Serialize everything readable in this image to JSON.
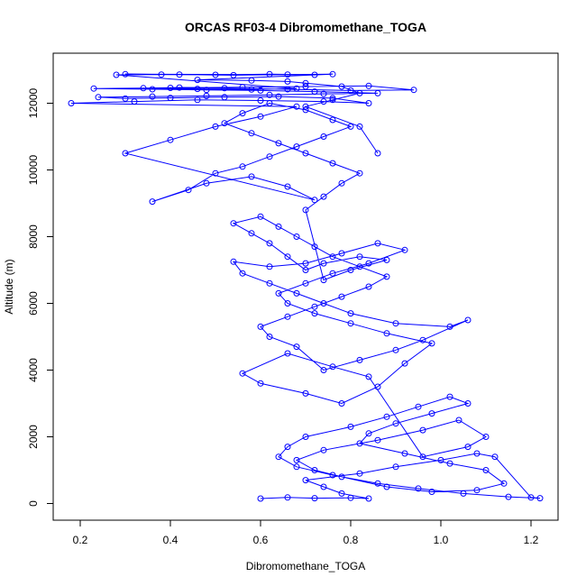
{
  "chart_data": {
    "type": "line",
    "title": "ORCAS RF03-4 Dibromomethane_TOGA",
    "xlabel": "Dibromomethane_TOGA",
    "ylabel": "Altitude (m)",
    "xlim": [
      0.14,
      1.26
    ],
    "ylim": [
      -500,
      13500
    ],
    "x_ticks": [
      0.2,
      0.4,
      0.6,
      0.8,
      1.0,
      1.2
    ],
    "x_tick_labels": [
      "0.2",
      "0.4",
      "0.6",
      "0.8",
      "1.0",
      "1.2"
    ],
    "y_ticks": [
      0,
      2000,
      4000,
      6000,
      8000,
      10000,
      12000
    ],
    "y_tick_labels": [
      "0",
      "2000",
      "4000",
      "6000",
      "8000",
      "10000",
      "12000"
    ],
    "grid": false,
    "series": [
      {
        "name": "Dibromomethane_TOGA",
        "color": "#0000ff",
        "marker": "open-circle",
        "points": [
          [
            0.6,
            150
          ],
          [
            0.66,
            180
          ],
          [
            0.72,
            160
          ],
          [
            0.8,
            170
          ],
          [
            0.84,
            150
          ],
          [
            0.78,
            300
          ],
          [
            0.74,
            500
          ],
          [
            0.7,
            700
          ],
          [
            0.82,
            900
          ],
          [
            0.9,
            1100
          ],
          [
            1.0,
            1300
          ],
          [
            1.08,
            1500
          ],
          [
            1.12,
            1400
          ],
          [
            1.2,
            180
          ],
          [
            1.22,
            160
          ],
          [
            1.15,
            200
          ],
          [
            1.05,
            300
          ],
          [
            0.95,
            450
          ],
          [
            0.86,
            600
          ],
          [
            0.76,
            850
          ],
          [
            0.68,
            1100
          ],
          [
            0.64,
            1400
          ],
          [
            0.66,
            1700
          ],
          [
            0.7,
            2000
          ],
          [
            0.8,
            2300
          ],
          [
            0.88,
            2600
          ],
          [
            0.95,
            2900
          ],
          [
            1.02,
            3200
          ],
          [
            1.06,
            3000
          ],
          [
            0.98,
            2700
          ],
          [
            0.9,
            2400
          ],
          [
            0.84,
            2100
          ],
          [
            0.82,
            1800
          ],
          [
            0.92,
            1500
          ],
          [
            1.02,
            1200
          ],
          [
            1.1,
            1000
          ],
          [
            1.14,
            600
          ],
          [
            1.08,
            400
          ],
          [
            0.98,
            350
          ],
          [
            0.88,
            500
          ],
          [
            0.78,
            800
          ],
          [
            0.72,
            1000
          ],
          [
            0.68,
            1300
          ],
          [
            0.74,
            1600
          ],
          [
            0.86,
            1900
          ],
          [
            0.96,
            2200
          ],
          [
            1.04,
            2500
          ],
          [
            1.1,
            2000
          ],
          [
            1.06,
            1700
          ],
          [
            0.96,
            1400
          ],
          [
            0.84,
            3800
          ],
          [
            0.76,
            4100
          ],
          [
            0.66,
            4500
          ],
          [
            0.56,
            3900
          ],
          [
            0.6,
            3600
          ],
          [
            0.7,
            3300
          ],
          [
            0.78,
            3000
          ],
          [
            0.86,
            3500
          ],
          [
            0.92,
            4200
          ],
          [
            0.98,
            4800
          ],
          [
            0.88,
            5100
          ],
          [
            0.8,
            5400
          ],
          [
            0.72,
            5700
          ],
          [
            0.66,
            6000
          ],
          [
            0.64,
            6300
          ],
          [
            0.7,
            6600
          ],
          [
            0.76,
            6900
          ],
          [
            0.84,
            7200
          ],
          [
            0.92,
            7600
          ],
          [
            0.86,
            7800
          ],
          [
            0.78,
            7500
          ],
          [
            0.7,
            7200
          ],
          [
            0.62,
            7100
          ],
          [
            0.54,
            7250
          ],
          [
            0.56,
            6900
          ],
          [
            0.62,
            6600
          ],
          [
            0.68,
            6300
          ],
          [
            0.74,
            6000
          ],
          [
            0.8,
            5700
          ],
          [
            0.9,
            5400
          ],
          [
            1.02,
            5300
          ],
          [
            1.06,
            5500
          ],
          [
            0.96,
            4900
          ],
          [
            0.9,
            4600
          ],
          [
            0.82,
            4300
          ],
          [
            0.74,
            4000
          ],
          [
            0.68,
            4700
          ],
          [
            0.62,
            5000
          ],
          [
            0.6,
            5300
          ],
          [
            0.66,
            5600
          ],
          [
            0.72,
            5900
          ],
          [
            0.78,
            6200
          ],
          [
            0.84,
            6500
          ],
          [
            0.88,
            6800
          ],
          [
            0.82,
            7100
          ],
          [
            0.76,
            7400
          ],
          [
            0.72,
            7700
          ],
          [
            0.68,
            8000
          ],
          [
            0.64,
            8300
          ],
          [
            0.6,
            8600
          ],
          [
            0.54,
            8400
          ],
          [
            0.58,
            8100
          ],
          [
            0.62,
            7800
          ],
          [
            0.66,
            7400
          ],
          [
            0.7,
            7000
          ],
          [
            0.74,
            7200
          ],
          [
            0.82,
            7400
          ],
          [
            0.88,
            7300
          ],
          [
            0.8,
            7000
          ],
          [
            0.74,
            6700
          ],
          [
            0.7,
            8800
          ],
          [
            0.74,
            9200
          ],
          [
            0.78,
            9600
          ],
          [
            0.82,
            9900
          ],
          [
            0.76,
            10200
          ],
          [
            0.7,
            10500
          ],
          [
            0.64,
            10800
          ],
          [
            0.58,
            11100
          ],
          [
            0.52,
            11400
          ],
          [
            0.56,
            11700
          ],
          [
            0.62,
            12000
          ],
          [
            0.7,
            11800
          ],
          [
            0.76,
            11500
          ],
          [
            0.8,
            11300
          ],
          [
            0.74,
            11000
          ],
          [
            0.68,
            10700
          ],
          [
            0.62,
            10400
          ],
          [
            0.56,
            10100
          ],
          [
            0.5,
            9900
          ],
          [
            0.44,
            9400
          ],
          [
            0.36,
            9050
          ],
          [
            0.48,
            9600
          ],
          [
            0.58,
            9800
          ],
          [
            0.66,
            9500
          ],
          [
            0.72,
            9100
          ],
          [
            0.3,
            10500
          ],
          [
            0.4,
            10900
          ],
          [
            0.5,
            11300
          ],
          [
            0.6,
            11600
          ],
          [
            0.68,
            11900
          ],
          [
            0.18,
            12000
          ],
          [
            0.32,
            12050
          ],
          [
            0.46,
            12100
          ],
          [
            0.6,
            12080
          ],
          [
            0.74,
            12050
          ],
          [
            0.84,
            12000
          ],
          [
            0.76,
            12150
          ],
          [
            0.64,
            12200
          ],
          [
            0.52,
            12180
          ],
          [
            0.4,
            12160
          ],
          [
            0.3,
            12140
          ],
          [
            0.24,
            12180
          ],
          [
            0.36,
            12200
          ],
          [
            0.48,
            12220
          ],
          [
            0.62,
            12250
          ],
          [
            0.74,
            12280
          ],
          [
            0.86,
            12300
          ],
          [
            0.72,
            12350
          ],
          [
            0.6,
            12380
          ],
          [
            0.48,
            12400
          ],
          [
            0.36,
            12420
          ],
          [
            0.23,
            12440
          ],
          [
            0.4,
            12460
          ],
          [
            0.56,
            12480
          ],
          [
            0.7,
            12500
          ],
          [
            0.84,
            12520
          ],
          [
            0.94,
            12400
          ],
          [
            0.8,
            12380
          ],
          [
            0.66,
            12420
          ],
          [
            0.52,
            12450
          ],
          [
            0.42,
            12470
          ],
          [
            0.34,
            12450
          ],
          [
            0.46,
            12430
          ],
          [
            0.58,
            12410
          ],
          [
            0.68,
            12440
          ],
          [
            0.28,
            12850
          ],
          [
            0.38,
            12860
          ],
          [
            0.5,
            12850
          ],
          [
            0.62,
            12870
          ],
          [
            0.72,
            12850
          ],
          [
            0.3,
            12870
          ],
          [
            0.42,
            12860
          ],
          [
            0.54,
            12840
          ],
          [
            0.66,
            12860
          ],
          [
            0.76,
            12870
          ],
          [
            0.46,
            12700
          ],
          [
            0.58,
            12680
          ],
          [
            0.66,
            12650
          ],
          [
            0.7,
            12600
          ],
          [
            0.78,
            12500
          ],
          [
            0.82,
            12300
          ],
          [
            0.76,
            12100
          ],
          [
            0.7,
            11900
          ],
          [
            0.82,
            11300
          ],
          [
            0.86,
            10500
          ]
        ]
      }
    ]
  }
}
